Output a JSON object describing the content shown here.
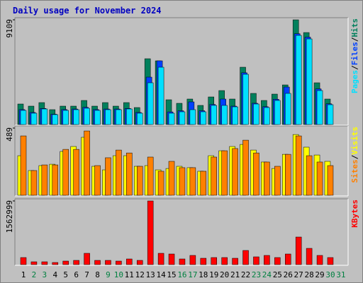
{
  "chart_data": [
    {
      "type": "bar",
      "title": "Daily usage for November 2024",
      "categories": [
        "1",
        "2",
        "3",
        "4",
        "5",
        "6",
        "7",
        "8",
        "9",
        "10",
        "11",
        "12",
        "13",
        "14",
        "15",
        "16",
        "17",
        "18",
        "19",
        "20",
        "21",
        "22",
        "23",
        "24",
        "25",
        "26",
        "27",
        "28",
        "29",
        "30",
        "31"
      ],
      "highlight_indices": [
        1,
        2,
        8,
        9,
        15,
        16,
        22,
        23,
        29,
        30
      ],
      "highlight_color": "#008040",
      "legend_separator": "/",
      "ylim": [
        0,
        9109
      ],
      "yticks": [
        9109
      ],
      "series": [
        {
          "name": "Hits",
          "color": "#00805c",
          "values": [
            1785,
            1600,
            1908,
            1293,
            1600,
            1600,
            2093,
            1600,
            1908,
            1600,
            1908,
            1477,
            5724,
            5540,
            2154,
            1846,
            2216,
            1662,
            2400,
            2954,
            2216,
            4985,
            2708,
            2093,
            2646,
            3446,
            9109,
            8000,
            3631,
            2216,
            null
          ]
        },
        {
          "name": "Files",
          "color": "#0040ff",
          "values": [
            1300,
            1050,
            1400,
            900,
            1300,
            1350,
            1500,
            1300,
            1350,
            1350,
            1400,
            1050,
            4123,
            5540,
            1100,
            1200,
            1969,
            1200,
            1750,
            2216,
            1600,
            4500,
            1850,
            1550,
            2200,
            3262,
            7900,
            7600,
            3100,
            1800,
            null
          ]
        },
        {
          "name": "Pages",
          "color": "#00e0ff",
          "values": [
            1230,
            985,
            1354,
            862,
            1230,
            1292,
            1415,
            1230,
            1292,
            1292,
            1354,
            985,
            3631,
            4985,
            985,
            1108,
            1292,
            1108,
            1662,
            1662,
            1538,
            4369,
            1785,
            1477,
            2093,
            2708,
            7754,
            7446,
            2954,
            1723,
            null
          ]
        }
      ]
    },
    {
      "type": "bar",
      "legend_separator": "/",
      "ylim": [
        0,
        489
      ],
      "yticks": [
        489
      ],
      "series": [
        {
          "name": "Visits",
          "color": "#ffff00",
          "values": [
            288,
            180,
            216,
            226,
            319,
            355,
            422,
            211,
            185,
            288,
            288,
            211,
            216,
            185,
            195,
            211,
            201,
            175,
            288,
            324,
            355,
            370,
            329,
            242,
            195,
            298,
            442,
            350,
            293,
            247,
            null
          ]
        },
        {
          "name": "Sites",
          "color": "#ff8000",
          "values": [
            432,
            180,
            221,
            221,
            334,
            334,
            468,
            216,
            273,
            329,
            308,
            211,
            278,
            175,
            247,
            201,
            201,
            175,
            278,
            324,
            340,
            401,
            308,
            242,
            211,
            298,
            432,
            288,
            242,
            216,
            null
          ]
        }
      ]
    },
    {
      "type": "bar",
      "ylim": [
        0,
        1562999
      ],
      "yticks": [
        1562999
      ],
      "series": [
        {
          "name": "KBytes",
          "color": "#ff0000",
          "values": [
            173667,
            69467,
            69467,
            52100,
            86833,
            104200,
            277866,
            104200,
            104200,
            86833,
            138933,
            104200,
            1562999,
            277866,
            260500,
            138933,
            225767,
            156300,
            173667,
            173667,
            156300,
            347333,
            191033,
            225767,
            173667,
            260500,
            677300,
            399433,
            225767,
            173667,
            null
          ]
        }
      ]
    }
  ]
}
